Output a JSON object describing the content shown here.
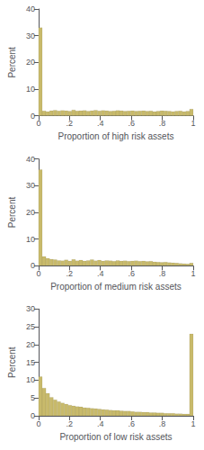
{
  "chart_data": [
    {
      "type": "histogram",
      "xlabel": "Proportion of high risk assets",
      "ylabel": "Percent",
      "bins": [
        0,
        0.02381,
        0.047619,
        0.071429,
        0.095238,
        0.119048,
        0.142857,
        0.166667,
        0.190476,
        0.214286,
        0.238095,
        0.261905,
        0.285714,
        0.309524,
        0.333333,
        0.357143,
        0.380952,
        0.404762,
        0.428571,
        0.452381,
        0.47619,
        0.5,
        0.52381,
        0.547619,
        0.571429,
        0.595238,
        0.619048,
        0.642857,
        0.666667,
        0.690476,
        0.714286,
        0.738095,
        0.761905,
        0.785714,
        0.809524,
        0.833333,
        0.857143,
        0.880952,
        0.904762,
        0.928571,
        0.952381,
        0.97619,
        1
      ],
      "values": [
        33.0,
        1.8,
        1.6,
        1.9,
        2.1,
        1.8,
        2.0,
        1.9,
        1.7,
        2.2,
        1.8,
        1.9,
        2.0,
        1.7,
        1.9,
        2.1,
        1.8,
        2.0,
        1.9,
        1.7,
        1.8,
        2.0,
        1.9,
        1.7,
        1.8,
        1.9,
        1.7,
        1.8,
        1.9,
        1.7,
        1.8,
        1.6,
        1.7,
        1.9,
        1.8,
        1.7,
        1.6,
        1.7,
        1.8,
        1.6,
        1.7,
        2.5
      ],
      "color": "#c8ba6b",
      "xlim": [
        0,
        1
      ],
      "xticks": [
        0,
        {
          "value": 0.2,
          "label": ".2"
        },
        {
          "value": 0.4,
          "label": ".4"
        },
        {
          "value": 0.6,
          "label": ".6"
        },
        {
          "value": 0.8,
          "label": ".8"
        },
        1
      ],
      "ylim": [
        0,
        40
      ],
      "yticks": [
        0,
        10,
        20,
        30,
        40
      ],
      "grid": false
    },
    {
      "type": "histogram",
      "xlabel": "Proportion of medium risk assets",
      "ylabel": "Percent",
      "bins": [
        0,
        0.02381,
        0.047619,
        0.071429,
        0.095238,
        0.119048,
        0.142857,
        0.166667,
        0.190476,
        0.214286,
        0.238095,
        0.261905,
        0.285714,
        0.309524,
        0.333333,
        0.357143,
        0.380952,
        0.404762,
        0.428571,
        0.452381,
        0.47619,
        0.5,
        0.52381,
        0.547619,
        0.571429,
        0.595238,
        0.619048,
        0.642857,
        0.666667,
        0.690476,
        0.714286,
        0.738095,
        0.761905,
        0.785714,
        0.809524,
        0.833333,
        0.857143,
        0.880952,
        0.904762,
        0.928571,
        0.952381,
        0.97619,
        1
      ],
      "values": [
        36.0,
        3.5,
        2.8,
        2.5,
        2.3,
        2.0,
        1.9,
        2.2,
        1.8,
        2.4,
        1.9,
        2.1,
        1.8,
        2.0,
        2.3,
        1.9,
        2.1,
        1.8,
        2.0,
        1.9,
        1.7,
        2.0,
        1.8,
        1.9,
        1.7,
        1.8,
        1.9,
        1.7,
        1.8,
        1.6,
        1.7,
        1.5,
        1.4,
        1.3,
        1.4,
        1.2,
        1.1,
        1.0,
        0.9,
        0.8,
        0.7,
        1.0
      ],
      "color": "#c8ba6b",
      "xlim": [
        0,
        1
      ],
      "xticks": [
        0,
        {
          "value": 0.2,
          "label": ".2"
        },
        {
          "value": 0.4,
          "label": ".4"
        },
        {
          "value": 0.6,
          "label": ".6"
        },
        {
          "value": 0.8,
          "label": ".8"
        },
        1
      ],
      "ylim": [
        0,
        40
      ],
      "yticks": [
        0,
        10,
        20,
        30,
        40
      ],
      "grid": false
    },
    {
      "type": "histogram",
      "xlabel": "Proportion of low risk assets",
      "ylabel": "Percent",
      "bins": [
        0,
        0.02381,
        0.047619,
        0.071429,
        0.095238,
        0.119048,
        0.142857,
        0.166667,
        0.190476,
        0.214286,
        0.238095,
        0.261905,
        0.285714,
        0.309524,
        0.333333,
        0.357143,
        0.380952,
        0.404762,
        0.428571,
        0.452381,
        0.47619,
        0.5,
        0.52381,
        0.547619,
        0.571429,
        0.595238,
        0.619048,
        0.642857,
        0.666667,
        0.690476,
        0.714286,
        0.738095,
        0.761905,
        0.785714,
        0.809524,
        0.833333,
        0.857143,
        0.880952,
        0.904762,
        0.928571,
        0.952381,
        0.97619,
        1
      ],
      "values": [
        11.0,
        7.8,
        6.3,
        5.2,
        4.5,
        4.0,
        3.6,
        3.3,
        3.0,
        2.8,
        2.6,
        2.5,
        2.3,
        2.2,
        2.1,
        2.0,
        1.9,
        1.8,
        1.7,
        1.6,
        1.5,
        1.5,
        1.4,
        1.3,
        1.3,
        1.2,
        1.1,
        1.1,
        1.0,
        1.0,
        0.9,
        0.9,
        0.8,
        0.8,
        0.7,
        0.7,
        0.7,
        0.6,
        0.6,
        0.5,
        0.5,
        23.0
      ],
      "color": "#c8ba6b",
      "xlim": [
        0,
        1
      ],
      "xticks": [
        0,
        {
          "value": 0.2,
          "label": ".2"
        },
        {
          "value": 0.4,
          "label": ".4"
        },
        {
          "value": 0.6,
          "label": ".6"
        },
        {
          "value": 0.8,
          "label": ".8"
        },
        1
      ],
      "ylim": [
        0,
        30
      ],
      "yticks": [
        0,
        5,
        10,
        15,
        20,
        25,
        30
      ],
      "grid": false
    }
  ]
}
